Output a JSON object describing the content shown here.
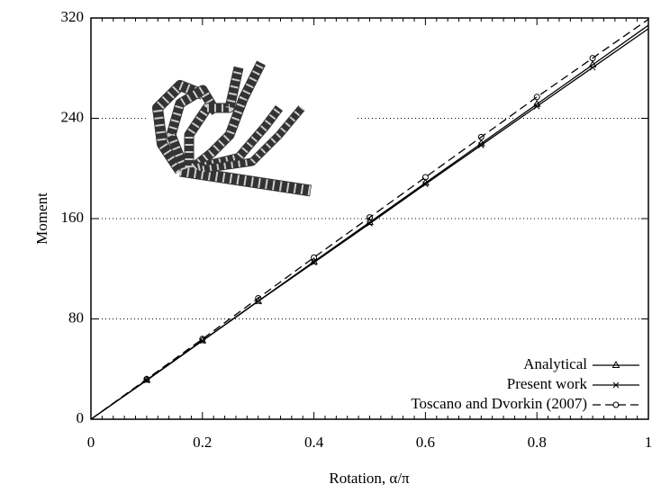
{
  "chart_data": {
    "type": "line",
    "x_label": "Rotation, α/π",
    "y_label": "Moment",
    "x": [
      0,
      0.1,
      0.2,
      0.3,
      0.4,
      0.5,
      0.6,
      0.7,
      0.8,
      0.9,
      1
    ],
    "series": [
      {
        "name": "Analytical",
        "color": "#000000",
        "line_style": "solid",
        "marker": "triangle",
        "values": [
          0,
          31.4,
          62.8,
          94.2,
          125.7,
          157.1,
          188.5,
          219.9,
          251.3,
          282.7,
          314.2
        ]
      },
      {
        "name": "Present work",
        "color": "#000000",
        "line_style": "solid",
        "marker": "cross",
        "values": [
          0,
          31,
          62.5,
          94,
          125,
          156,
          187.5,
          218.5,
          249.5,
          280.5,
          311.5
        ]
      },
      {
        "name": "Toscano and Dvorkin (2007)",
        "color": "#000000",
        "line_style": "dashed",
        "marker": "circle",
        "values": [
          0,
          32,
          64,
          96.5,
          129,
          161,
          193,
          225,
          257,
          288,
          319
        ]
      }
    ],
    "xlim": [
      0,
      1
    ],
    "xticks": [
      0,
      0.2,
      0.4,
      0.6,
      0.8,
      1
    ],
    "ylim": [
      0,
      320
    ],
    "yticks": [
      0,
      80,
      160,
      240,
      320
    ],
    "grid": true,
    "legend": "lower right"
  }
}
